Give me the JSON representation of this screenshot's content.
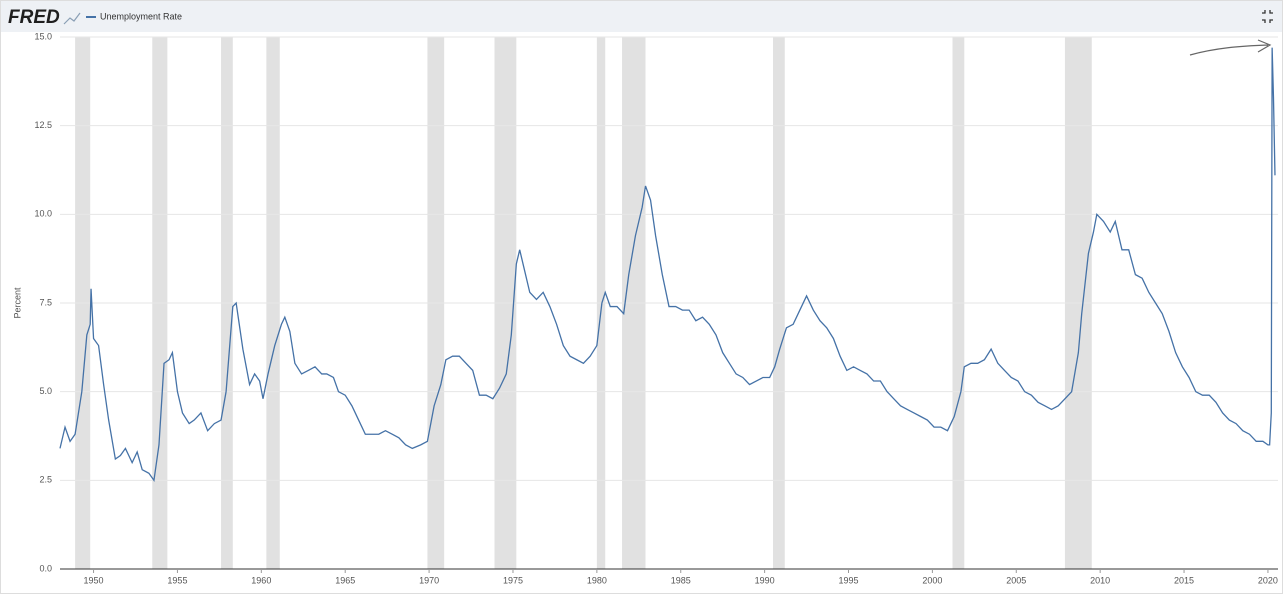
{
  "header": {
    "logo": "FRED"
  },
  "chart_data": {
    "type": "line",
    "y_label": "Percent",
    "xlim": [
      1948,
      2020.6
    ],
    "xticks": [
      1950,
      1955,
      1960,
      1965,
      1970,
      1975,
      1980,
      1985,
      1990,
      1995,
      2000,
      2005,
      2010,
      2015,
      2020
    ],
    "ylim": [
      0,
      15
    ],
    "yticks": [
      {
        "value": 0,
        "label": "0.0"
      },
      {
        "value": 2.5,
        "label": "2.5"
      },
      {
        "value": 5,
        "label": "5.0"
      },
      {
        "value": 7.5,
        "label": "7.5"
      },
      {
        "value": 10,
        "label": "10.0"
      },
      {
        "value": 12.5,
        "label": "12.5"
      },
      {
        "value": 15,
        "label": "15.0"
      }
    ],
    "grid": true,
    "recessions": [
      [
        1948.9,
        1949.8
      ],
      [
        1953.5,
        1954.4
      ],
      [
        1957.6,
        1958.3
      ],
      [
        1960.3,
        1961.1
      ],
      [
        1969.9,
        1970.9
      ],
      [
        1973.9,
        1975.2
      ],
      [
        1980.0,
        1980.5
      ],
      [
        1981.5,
        1982.9
      ],
      [
        1990.5,
        1991.2
      ],
      [
        2001.2,
        2001.9
      ],
      [
        2007.9,
        2009.5
      ]
    ],
    "recession_color": "#e1e1e1",
    "x": [
      1948.0,
      1948.3,
      1948.6,
      1948.9,
      1949.3,
      1949.6,
      1949.8,
      1949.85,
      1950.0,
      1950.3,
      1950.6,
      1950.9,
      1951.3,
      1951.6,
      1951.9,
      1952.3,
      1952.6,
      1952.9,
      1953.3,
      1953.6,
      1953.9,
      1954.2,
      1954.5,
      1954.7,
      1955.0,
      1955.3,
      1955.7,
      1956.0,
      1956.4,
      1956.8,
      1957.2,
      1957.6,
      1957.9,
      1958.3,
      1958.5,
      1958.9,
      1959.3,
      1959.6,
      1959.9,
      1960.1,
      1960.4,
      1960.8,
      1961.2,
      1961.4,
      1961.7,
      1962.0,
      1962.4,
      1962.8,
      1963.2,
      1963.6,
      1963.9,
      1964.3,
      1964.6,
      1965.0,
      1965.4,
      1965.8,
      1966.2,
      1966.6,
      1967.0,
      1967.4,
      1967.8,
      1968.2,
      1968.6,
      1969.0,
      1969.5,
      1969.9,
      1970.3,
      1970.7,
      1971.0,
      1971.4,
      1971.8,
      1972.2,
      1972.6,
      1973.0,
      1973.4,
      1973.8,
      1974.2,
      1974.6,
      1974.9,
      1975.2,
      1975.4,
      1975.7,
      1976.0,
      1976.4,
      1976.8,
      1977.2,
      1977.6,
      1978.0,
      1978.4,
      1978.8,
      1979.2,
      1979.6,
      1980.0,
      1980.3,
      1980.5,
      1980.8,
      1981.2,
      1981.6,
      1981.9,
      1982.3,
      1982.7,
      1982.9,
      1983.2,
      1983.5,
      1983.9,
      1984.3,
      1984.7,
      1985.1,
      1985.5,
      1985.9,
      1986.3,
      1986.7,
      1987.1,
      1987.5,
      1987.9,
      1988.3,
      1988.7,
      1989.1,
      1989.5,
      1989.9,
      1990.3,
      1990.6,
      1990.9,
      1991.3,
      1991.7,
      1992.1,
      1992.5,
      1992.9,
      1993.3,
      1993.7,
      1994.1,
      1994.5,
      1994.9,
      1995.3,
      1995.7,
      1996.1,
      1996.5,
      1996.9,
      1997.3,
      1997.7,
      1998.1,
      1998.5,
      1998.9,
      1999.3,
      1999.7,
      2000.1,
      2000.5,
      2000.9,
      2001.3,
      2001.7,
      2001.9,
      2002.3,
      2002.7,
      2003.1,
      2003.5,
      2003.9,
      2004.3,
      2004.7,
      2005.1,
      2005.5,
      2005.9,
      2006.3,
      2006.7,
      2007.1,
      2007.5,
      2007.9,
      2008.3,
      2008.7,
      2008.9,
      2009.3,
      2009.6,
      2009.8,
      2010.2,
      2010.6,
      2010.9,
      2011.3,
      2011.7,
      2012.1,
      2012.5,
      2012.9,
      2013.3,
      2013.7,
      2014.1,
      2014.5,
      2014.9,
      2015.3,
      2015.7,
      2016.1,
      2016.5,
      2016.9,
      2017.3,
      2017.7,
      2018.1,
      2018.5,
      2018.9,
      2019.3,
      2019.7,
      2020.0,
      2020.1,
      2020.2,
      2020.25,
      2020.33,
      2020.42
    ],
    "series": [
      {
        "name": "Unemployment Rate",
        "color": "#4572a7",
        "values": [
          3.4,
          4.0,
          3.6,
          3.8,
          5.0,
          6.6,
          6.9,
          7.9,
          6.5,
          6.3,
          5.2,
          4.2,
          3.1,
          3.2,
          3.4,
          3.0,
          3.3,
          2.8,
          2.7,
          2.5,
          3.5,
          5.8,
          5.9,
          6.1,
          5.0,
          4.4,
          4.1,
          4.2,
          4.4,
          3.9,
          4.1,
          4.2,
          5.0,
          7.4,
          7.5,
          6.2,
          5.2,
          5.5,
          5.3,
          4.8,
          5.5,
          6.3,
          6.9,
          7.1,
          6.7,
          5.8,
          5.5,
          5.6,
          5.7,
          5.5,
          5.5,
          5.4,
          5.0,
          4.9,
          4.6,
          4.2,
          3.8,
          3.8,
          3.8,
          3.9,
          3.8,
          3.7,
          3.5,
          3.4,
          3.5,
          3.6,
          4.6,
          5.2,
          5.9,
          6.0,
          6.0,
          5.8,
          5.6,
          4.9,
          4.9,
          4.8,
          5.1,
          5.5,
          6.6,
          8.6,
          9.0,
          8.4,
          7.8,
          7.6,
          7.8,
          7.4,
          6.9,
          6.3,
          6.0,
          5.9,
          5.8,
          6.0,
          6.3,
          7.5,
          7.8,
          7.4,
          7.4,
          7.2,
          8.3,
          9.4,
          10.2,
          10.8,
          10.4,
          9.4,
          8.3,
          7.4,
          7.4,
          7.3,
          7.3,
          7.0,
          7.1,
          6.9,
          6.6,
          6.1,
          5.8,
          5.5,
          5.4,
          5.2,
          5.3,
          5.4,
          5.4,
          5.7,
          6.2,
          6.8,
          6.9,
          7.3,
          7.7,
          7.3,
          7.0,
          6.8,
          6.5,
          6.0,
          5.6,
          5.7,
          5.6,
          5.5,
          5.3,
          5.3,
          5.0,
          4.8,
          4.6,
          4.5,
          4.4,
          4.3,
          4.2,
          4.0,
          4.0,
          3.9,
          4.3,
          5.0,
          5.7,
          5.8,
          5.8,
          5.9,
          6.2,
          5.8,
          5.6,
          5.4,
          5.3,
          5.0,
          4.9,
          4.7,
          4.6,
          4.5,
          4.6,
          4.8,
          5.0,
          6.1,
          7.2,
          8.9,
          9.5,
          10.0,
          9.8,
          9.5,
          9.8,
          9.0,
          9.0,
          8.3,
          8.2,
          7.8,
          7.5,
          7.2,
          6.7,
          6.1,
          5.7,
          5.4,
          5.0,
          4.9,
          4.9,
          4.7,
          4.4,
          4.2,
          4.1,
          3.9,
          3.8,
          3.6,
          3.6,
          3.5,
          3.5,
          4.4,
          14.7,
          13.3,
          11.1
        ]
      }
    ]
  }
}
